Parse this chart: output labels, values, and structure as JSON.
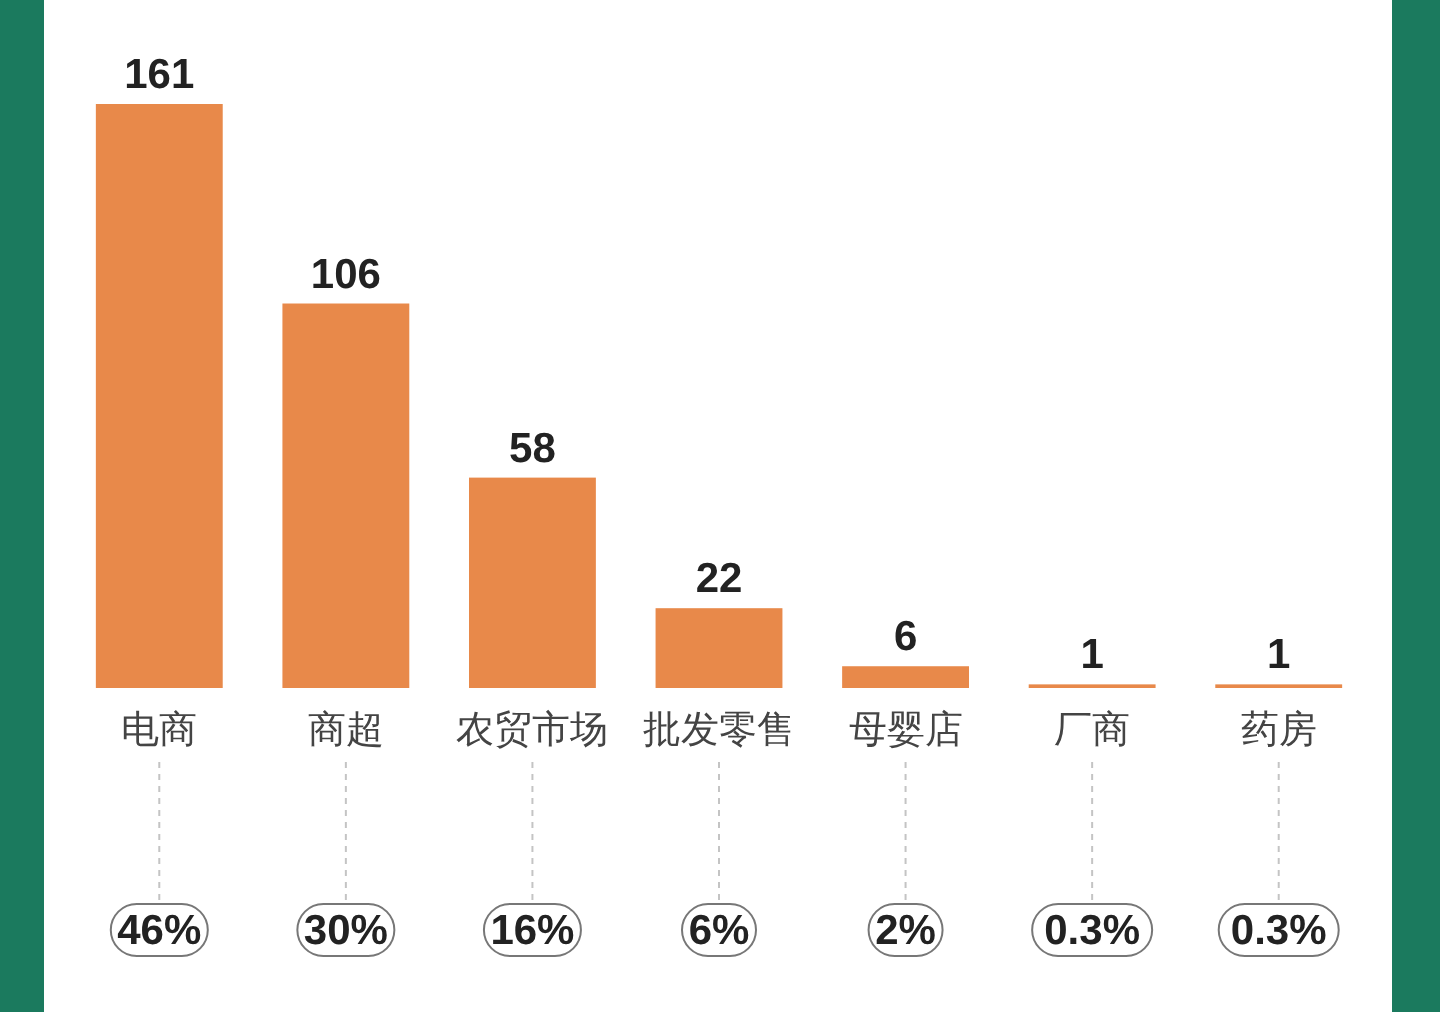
{
  "chart_data": {
    "type": "bar",
    "categories": [
      "电商",
      "商超",
      "农贸市场",
      "批发零售",
      "母婴店",
      "厂商",
      "药房"
    ],
    "values": [
      161,
      106,
      58,
      22,
      6,
      1,
      1
    ],
    "color": "#e8894a",
    "data_labels": true,
    "annotations": [
      "46%",
      "30%",
      "16%",
      "6%",
      "2%",
      "0.3%",
      "0.3%"
    ]
  }
}
